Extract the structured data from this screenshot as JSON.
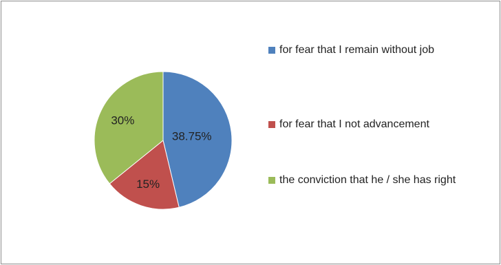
{
  "chart_data": {
    "type": "pie",
    "categories": [
      "for fear that I remain without job",
      "for fear that I not advancement",
      "the conviction that he / she has right"
    ],
    "values": [
      38.75,
      15,
      30
    ],
    "value_labels": [
      "38.75%",
      "15%",
      "30%"
    ],
    "colors": [
      "#4f81bd",
      "#c0504d",
      "#9bbb59"
    ],
    "legend": "right"
  }
}
